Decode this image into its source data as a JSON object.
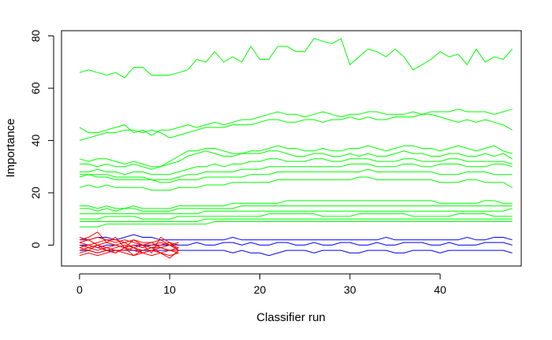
{
  "chart_data": {
    "type": "line",
    "xlabel": "Classifier run",
    "ylabel": "Importance",
    "xlim": [
      -2,
      49
    ],
    "ylim": [
      -8,
      82
    ],
    "x_ticks": [
      0,
      10,
      20,
      30,
      40
    ],
    "y_ticks": [
      0,
      20,
      40,
      60,
      80
    ],
    "grid": false,
    "legend": "none",
    "colors": {
      "accepted": "#00ff00",
      "shadow": "#0000ff",
      "rejected": "#ff0000",
      "axis": "#000000"
    },
    "series_by_group": {
      "accepted": [
        [
          66,
          67,
          66,
          65,
          66,
          64,
          68,
          68,
          65,
          65,
          65,
          66,
          67,
          71,
          70,
          74,
          70,
          72,
          70,
          76,
          71,
          71,
          76,
          76,
          74,
          74,
          79,
          78,
          77,
          79,
          69,
          72,
          75,
          74,
          72,
          75,
          72,
          67,
          69,
          71,
          74,
          72,
          73,
          69,
          75,
          70,
          72,
          71,
          75
        ],
        [
          45,
          43,
          43,
          44,
          45,
          46,
          43,
          44,
          42,
          44,
          44,
          45,
          46,
          45,
          46,
          47,
          46,
          47,
          48,
          48,
          49,
          50,
          51,
          50,
          50,
          49,
          50,
          51,
          50,
          49,
          50,
          50,
          51,
          51,
          50,
          50,
          50,
          51,
          50,
          51,
          51,
          51,
          52,
          51,
          51,
          51,
          50,
          51,
          52
        ],
        [
          40,
          41,
          42,
          43,
          43,
          44,
          44,
          43,
          44,
          43,
          41,
          42,
          43,
          44,
          45,
          45,
          45,
          46,
          46,
          46,
          47,
          48,
          48,
          47,
          47,
          48,
          48,
          47,
          48,
          48,
          49,
          48,
          49,
          48,
          48,
          49,
          49,
          49,
          50,
          50,
          49,
          48,
          47,
          48,
          47,
          48,
          47,
          46,
          44
        ],
        [
          33,
          32,
          33,
          33,
          32,
          31,
          32,
          31,
          30,
          30,
          32,
          34,
          36,
          36,
          37,
          37,
          36,
          35,
          35,
          36,
          36,
          37,
          38,
          37,
          37,
          36,
          36,
          37,
          36,
          36,
          37,
          37,
          38,
          37,
          36,
          37,
          38,
          38,
          37,
          37,
          36,
          37,
          38,
          37,
          36,
          37,
          38,
          36,
          35
        ],
        [
          31,
          31,
          30,
          31,
          30,
          30,
          31,
          30,
          29,
          30,
          31,
          32,
          34,
          35,
          36,
          35,
          34,
          34,
          35,
          35,
          35,
          36,
          36,
          35,
          34,
          34,
          35,
          35,
          34,
          34,
          35,
          34,
          35,
          34,
          34,
          35,
          36,
          35,
          35,
          34,
          34,
          35,
          35,
          34,
          34,
          35,
          34,
          35,
          33
        ],
        [
          28,
          28,
          29,
          28,
          28,
          27,
          28,
          28,
          27,
          27,
          27,
          28,
          29,
          30,
          30,
          31,
          30,
          31,
          31,
          32,
          32,
          33,
          33,
          32,
          32,
          32,
          33,
          33,
          32,
          32,
          33,
          33,
          33,
          32,
          32,
          32,
          33,
          33,
          32,
          32,
          32,
          33,
          33,
          32,
          32,
          32,
          32,
          32,
          31
        ],
        [
          27,
          27,
          27,
          27,
          26,
          26,
          26,
          26,
          25,
          25,
          25,
          26,
          27,
          27,
          28,
          28,
          28,
          28,
          29,
          29,
          29,
          30,
          30,
          30,
          30,
          30,
          30,
          30,
          30,
          30,
          31,
          31,
          31,
          30,
          30,
          30,
          31,
          31,
          30,
          30,
          31,
          31,
          31,
          30,
          30,
          30,
          31,
          31,
          30
        ],
        [
          26,
          27,
          26,
          26,
          25,
          25,
          25,
          25,
          25,
          24,
          24,
          25,
          25,
          25,
          26,
          26,
          26,
          26,
          26,
          27,
          27,
          27,
          28,
          28,
          28,
          28,
          28,
          28,
          28,
          28,
          28,
          28,
          29,
          28,
          28,
          28,
          28,
          28,
          28,
          28,
          27,
          27,
          27,
          28,
          28,
          28,
          27,
          27,
          27
        ],
        [
          22,
          23,
          22,
          23,
          22,
          22,
          22,
          22,
          21,
          21,
          21,
          22,
          22,
          22,
          23,
          23,
          23,
          24,
          24,
          24,
          24,
          24,
          25,
          25,
          25,
          25,
          25,
          25,
          25,
          25,
          25,
          26,
          26,
          25,
          25,
          25,
          25,
          25,
          25,
          25,
          24,
          24,
          24,
          25,
          25,
          24,
          24,
          24,
          22
        ],
        [
          15,
          15,
          14,
          15,
          14,
          14,
          15,
          14,
          14,
          14,
          14,
          15,
          15,
          15,
          15,
          15,
          15,
          16,
          16,
          16,
          16,
          16,
          16,
          17,
          17,
          17,
          17,
          17,
          17,
          17,
          17,
          17,
          17,
          17,
          17,
          17,
          17,
          17,
          17,
          17,
          16,
          16,
          16,
          16,
          16,
          17,
          17,
          16,
          16
        ],
        [
          14,
          14,
          13,
          14,
          13,
          14,
          14,
          13,
          13,
          13,
          13,
          14,
          14,
          14,
          14,
          14,
          14,
          14,
          15,
          15,
          15,
          15,
          15,
          15,
          15,
          15,
          15,
          15,
          15,
          15,
          15,
          15,
          15,
          15,
          15,
          15,
          15,
          15,
          15,
          15,
          15,
          15,
          15,
          15,
          15,
          15,
          15,
          15,
          15
        ],
        [
          12,
          12,
          12,
          12,
          12,
          12,
          12,
          12,
          12,
          12,
          12,
          12,
          12,
          12,
          13,
          13,
          13,
          13,
          13,
          13,
          13,
          13,
          13,
          13,
          13,
          13,
          13,
          13,
          13,
          13,
          13,
          13,
          13,
          13,
          13,
          13,
          13,
          13,
          13,
          13,
          13,
          13,
          13,
          13,
          13,
          13,
          13,
          13,
          14
        ],
        [
          10,
          10,
          10,
          11,
          11,
          11,
          11,
          10,
          10,
          10,
          10,
          11,
          11,
          11,
          11,
          11,
          11,
          11,
          11,
          11,
          11,
          12,
          12,
          12,
          12,
          12,
          12,
          11,
          11,
          11,
          11,
          12,
          12,
          12,
          12,
          12,
          12,
          11,
          11,
          11,
          11,
          11,
          12,
          12,
          12,
          12,
          11,
          11,
          11
        ],
        [
          9,
          9,
          9,
          9,
          9,
          9,
          9,
          9,
          9,
          9,
          9,
          9,
          9,
          9,
          10,
          10,
          10,
          10,
          10,
          10,
          10,
          10,
          10,
          10,
          10,
          10,
          10,
          10,
          10,
          10,
          10,
          10,
          10,
          10,
          10,
          10,
          10,
          10,
          10,
          10,
          10,
          10,
          10,
          10,
          10,
          10,
          10,
          10,
          10
        ],
        [
          7,
          7,
          7,
          8,
          8,
          8,
          8,
          8,
          8,
          8,
          8,
          8,
          8,
          8,
          8,
          9,
          9,
          9,
          9,
          9,
          9,
          9,
          9,
          9,
          9,
          9,
          9,
          9,
          9,
          9,
          9,
          9,
          9,
          9,
          9,
          9,
          9,
          9,
          9,
          9,
          9,
          9,
          9,
          9,
          9,
          9,
          9,
          9,
          9
        ]
      ],
      "shadow": [
        [
          2,
          2,
          3,
          3,
          2,
          3,
          4,
          3,
          3,
          2,
          2,
          2,
          2,
          2,
          2,
          2,
          2,
          3,
          2,
          2,
          2,
          2,
          2,
          2,
          2,
          2,
          2,
          2,
          2,
          2,
          2,
          2,
          2,
          2,
          3,
          2,
          2,
          2,
          2,
          2,
          2,
          2,
          2,
          3,
          2,
          2,
          3,
          3,
          2
        ],
        [
          0,
          0,
          -1,
          0,
          0,
          -1,
          0,
          0,
          0,
          0,
          0,
          0,
          0,
          1,
          0,
          0,
          1,
          1,
          0,
          1,
          0,
          0,
          1,
          1,
          0,
          0,
          1,
          0,
          0,
          1,
          1,
          0,
          0,
          1,
          0,
          0,
          1,
          1,
          1,
          0,
          0,
          1,
          0,
          0,
          0,
          1,
          1,
          1,
          0
        ],
        [
          -2,
          -2,
          -3,
          -2,
          -2,
          -2,
          -2,
          -2,
          -2,
          -2,
          -2,
          -2,
          -2,
          -2,
          -2,
          -2,
          -2,
          -3,
          -2,
          -3,
          -3,
          -4,
          -3,
          -2,
          -2,
          -2,
          -3,
          -2,
          -2,
          -2,
          -3,
          -3,
          -2,
          -2,
          -2,
          -3,
          -3,
          -2,
          -2,
          -2,
          -3,
          -2,
          -2,
          -2,
          -2,
          -2,
          -2,
          -2,
          -3
        ]
      ],
      "rejected": [
        [
          3,
          2,
          3,
          2,
          2,
          1,
          2,
          1,
          1,
          2,
          0,
          -2
        ],
        [
          1,
          0,
          1,
          2,
          1,
          2,
          1,
          0,
          -1,
          0,
          1,
          0
        ],
        [
          0,
          -1,
          0,
          -1,
          0,
          -1,
          0,
          -1,
          0,
          1,
          0,
          -1
        ],
        [
          -1,
          0,
          -1,
          -2,
          -1,
          0,
          -1,
          -2,
          -1,
          -1,
          -2,
          -1
        ],
        [
          -2,
          -1,
          -2,
          -1,
          -2,
          -2,
          -1,
          -3,
          -2,
          -1,
          -2,
          -2
        ],
        [
          -3,
          -2,
          -3,
          -2,
          -3,
          -1,
          -2,
          -3,
          -2,
          -3,
          -2,
          -3
        ],
        [
          -4,
          -3,
          -4,
          -3,
          -2,
          -3,
          -4,
          -3,
          -4,
          -3,
          -4,
          -3
        ],
        [
          1,
          2,
          0,
          1,
          0,
          1,
          -1,
          0,
          1,
          -1,
          0,
          1
        ],
        [
          2,
          3,
          5,
          1,
          3,
          -1,
          2,
          0,
          -3,
          3,
          1,
          -2
        ],
        [
          -1,
          -2,
          0,
          -2,
          -3,
          -1,
          -4,
          -2,
          -1,
          -3,
          -5,
          -2
        ]
      ]
    }
  }
}
